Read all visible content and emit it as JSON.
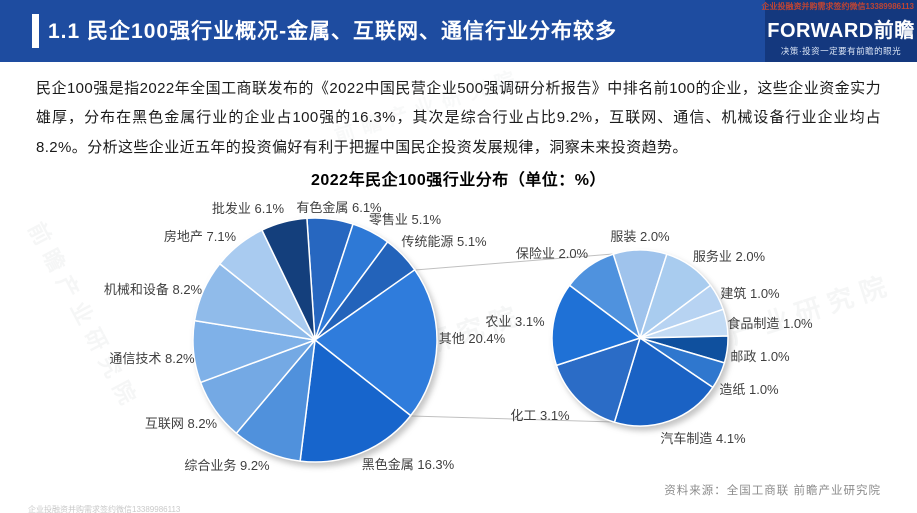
{
  "header": {
    "title": "1.1 民企100强行业概况-金属、互联网、通信行业分布较多",
    "contact_watermark": "企业投融资并购需求签约微信13389986113",
    "logo": {
      "brand": "FORWARD前瞻",
      "tagline": "决策·投资一定要有前瞻的眼光"
    }
  },
  "body": {
    "paragraph": "民企100强是指2022年全国工商联发布的《2022中国民营企业500强调研分析报告》中排名前100的企业，这些企业资金实力雄厚，分布在黑色金属行业的企业占100强的16.3%，其次是综合行业占比9.2%，互联网、通信、机械设备行业企业均占8.2%。分析这些企业近五年的投资偏好有利于把握中国民企投资发展规律，洞察未来投资趋势。"
  },
  "chart_data": {
    "type": "pie",
    "title": "2022年民企100强行业分布（单位：%）",
    "unit": "%",
    "layout": "pie-of-pie; right pie is the breakdown of the 其他 20.4% slice; gray connector lines link them; labels outside slices",
    "pies": [
      {
        "id": "main",
        "start_angle": 356.2,
        "slices": [
          {
            "label": "有色金属",
            "value": 6.1,
            "color": "#2767C0"
          },
          {
            "label": "零售业",
            "value": 5.1,
            "color": "#2E79D6"
          },
          {
            "label": "传统能源",
            "value": 5.1,
            "color": "#2363BA"
          },
          {
            "label": "其他",
            "value": 20.4,
            "color": "#2F7CDC"
          },
          {
            "label": "黑色金属",
            "value": 16.3,
            "color": "#1765CC"
          },
          {
            "label": "综合业务",
            "value": 9.2,
            "color": "#5091DC"
          },
          {
            "label": "互联网",
            "value": 8.2,
            "color": "#74A9E4"
          },
          {
            "label": "通信技术",
            "value": 8.2,
            "color": "#7FB1E8"
          },
          {
            "label": "机械和设备",
            "value": 8.2,
            "color": "#90BBEA"
          },
          {
            "label": "房地产",
            "value": 7.1,
            "color": "#A9CBF0"
          },
          {
            "label": "批发业",
            "value": 6.1,
            "color": "#143F7C"
          }
        ]
      },
      {
        "id": "other-breakdown",
        "start_angle": 342.3,
        "slices": [
          {
            "label": "服装",
            "value": 2.0,
            "color": "#9FC3EC"
          },
          {
            "label": "服务业",
            "value": 2.0,
            "color": "#A9CCEF"
          },
          {
            "label": "建筑",
            "value": 1.0,
            "color": "#B7D3F2"
          },
          {
            "label": "食品制造",
            "value": 1.0,
            "color": "#C3DBF4"
          },
          {
            "label": "邮政",
            "value": 1.0,
            "color": "#0F509E"
          },
          {
            "label": "造纸",
            "value": 1.0,
            "color": "#2F77CE"
          },
          {
            "label": "汽车制造",
            "value": 4.1,
            "color": "#1A62C4"
          },
          {
            "label": "化工",
            "value": 3.1,
            "color": "#2B6CC6"
          },
          {
            "label": "农业",
            "value": 3.1,
            "color": "#1F71D6"
          },
          {
            "label": "保险业",
            "value": 2.0,
            "color": "#4F92DE"
          }
        ]
      }
    ]
  },
  "footer": {
    "source": "资料来源：全国工商联  前瞻产业研究院",
    "contact_watermark": "企业投融资并购需求签约微信13389986113"
  },
  "watermark": {
    "text": "前瞻产业研究院"
  },
  "colors": {
    "header_bg": "#1E4CA0",
    "header_logo_bg": "#14387E",
    "accent_bar": "#FFFFFF",
    "contact_red": "#BE4534",
    "connector_gray": "#C0C0C0",
    "source_gray": "#8C8C8C"
  }
}
